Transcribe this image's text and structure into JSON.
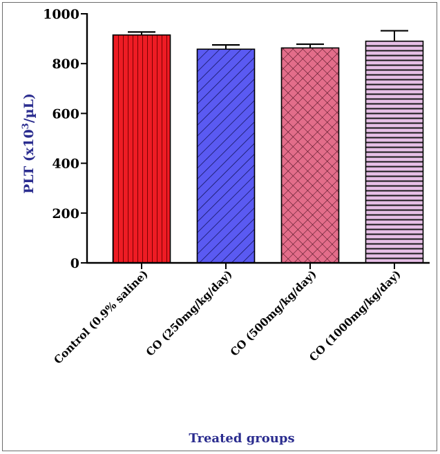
{
  "chart_data": {
    "type": "bar",
    "title": "",
    "xlabel": "Treated groups",
    "ylabel": "PLT (x10³/µL)",
    "ylabel_parts": {
      "main": "PLT (x10",
      "sup": "3",
      "tail": "/µL)"
    },
    "ylim": [
      0,
      1000
    ],
    "yticks": [
      "0",
      "200",
      "400",
      "600",
      "800",
      "1000"
    ],
    "grid": false,
    "categories": [
      "Control (0.9% saline)",
      "CO (250mg/kg/day)",
      "CO (500mg/kg/day)",
      "CO (1000mg/kg/day)"
    ],
    "values": [
      915,
      858,
      863,
      890
    ],
    "errors": [
      12,
      17,
      15,
      42
    ],
    "bar_colors": [
      "#ee1c24",
      "#5a5af2",
      "#e36d8a",
      "#e6bfe6"
    ],
    "bar_patterns": [
      "vertical-lines",
      "diagonal-lines",
      "crosshatch",
      "horizontal-lines"
    ]
  }
}
